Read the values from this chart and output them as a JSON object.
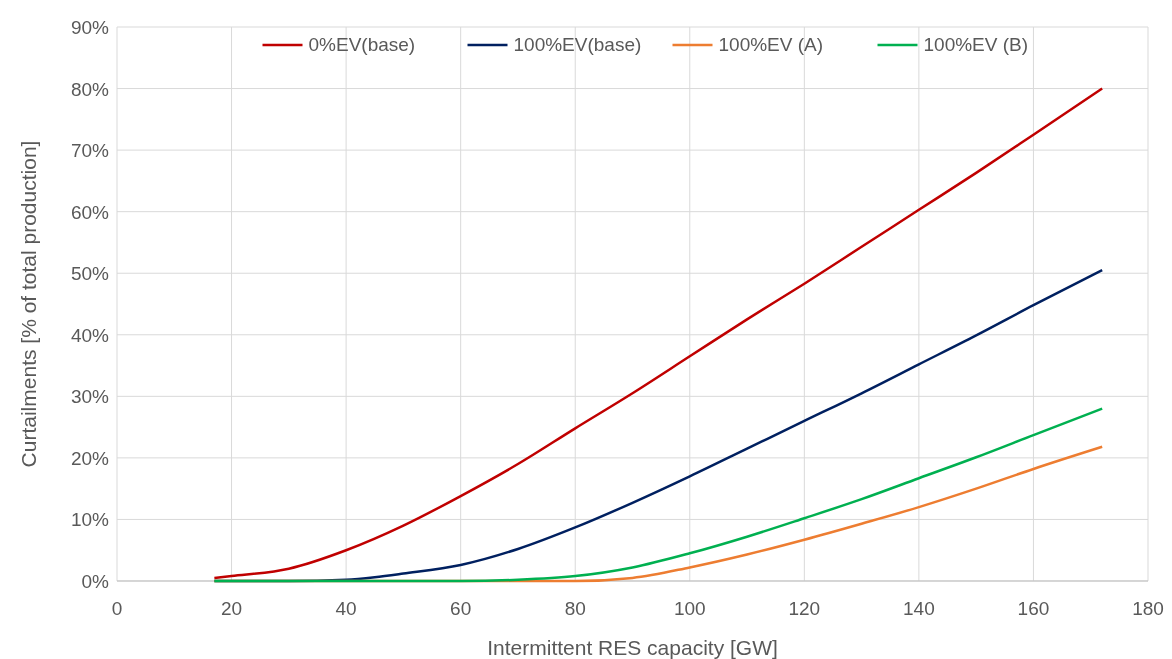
{
  "chart_data": {
    "type": "line",
    "xlabel": "Intermittent RES capacity [GW]",
    "ylabel": "Curtailments [% of total production]",
    "xlim": [
      0,
      180
    ],
    "xticks": [
      0,
      20,
      40,
      60,
      80,
      100,
      120,
      140,
      160,
      180
    ],
    "ylim": [
      0,
      90
    ],
    "yticks": [
      {
        "value": 0,
        "label": "0%"
      },
      {
        "value": 10,
        "label": "10%"
      },
      {
        "value": 20,
        "label": "20%"
      },
      {
        "value": 30,
        "label": "30%"
      },
      {
        "value": 40,
        "label": "40%"
      },
      {
        "value": 50,
        "label": "50%"
      },
      {
        "value": 60,
        "label": "60%"
      },
      {
        "value": 70,
        "label": "70%"
      },
      {
        "value": 80,
        "label": "80%"
      },
      {
        "value": 90,
        "label": "90%"
      }
    ],
    "grid": true,
    "legend": "top",
    "marker": "none",
    "line_style": "solid",
    "series": [
      {
        "name": "0%EV(base)",
        "color": "#c00000",
        "x": [
          17,
          20,
          30,
          40,
          50,
          60,
          70,
          80,
          90,
          100,
          110,
          120,
          130,
          140,
          150,
          160,
          172
        ],
        "values": [
          0.5,
          0.8,
          2,
          5,
          9,
          13.8,
          19,
          24.8,
          30.5,
          36.5,
          42.5,
          48.3,
          54.3,
          60.3,
          66.3,
          72.5,
          80
        ]
      },
      {
        "name": "100%EV(base)",
        "color": "#002060",
        "x": [
          17,
          30,
          40,
          45,
          50,
          60,
          70,
          80,
          90,
          100,
          110,
          120,
          130,
          140,
          150,
          160,
          172
        ],
        "values": [
          0,
          0,
          0.2,
          0.6,
          1.2,
          2.6,
          5.2,
          8.7,
          12.7,
          17,
          21.5,
          26,
          30.5,
          35.2,
          39.9,
          44.8,
          50.5
        ]
      },
      {
        "name": "100%EV (A)",
        "color": "#ed7d31",
        "x": [
          17,
          80,
          90,
          100,
          110,
          120,
          130,
          140,
          150,
          160,
          172
        ],
        "values": [
          0,
          0,
          0.5,
          2.2,
          4.3,
          6.7,
          9.3,
          12,
          15,
          18.2,
          21.8
        ]
      },
      {
        "name": "100%EV (B)",
        "color": "#00b050",
        "x": [
          17,
          60,
          70,
          80,
          90,
          100,
          110,
          120,
          130,
          140,
          150,
          160,
          172
        ],
        "values": [
          0,
          0,
          0.2,
          0.8,
          2.2,
          4.5,
          7.2,
          10.2,
          13.3,
          16.7,
          20.1,
          23.7,
          28
        ]
      }
    ]
  }
}
